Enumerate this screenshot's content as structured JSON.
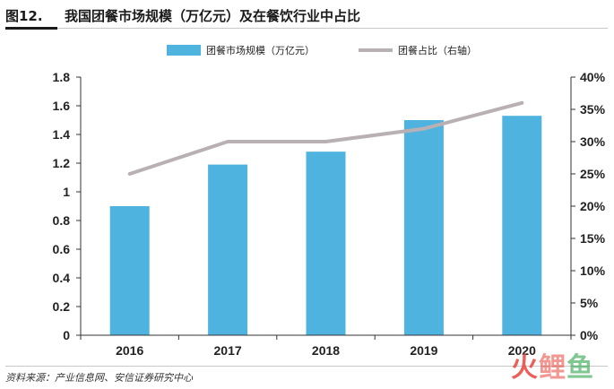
{
  "header": {
    "figure_label": "图12.",
    "title": "我国团餐市场规模（万亿元）及在餐饮行业中占比"
  },
  "chart_data": {
    "type": "bar",
    "categories": [
      "2016",
      "2017",
      "2018",
      "2019",
      "2020"
    ],
    "series": [
      {
        "name": "团餐市场规模（万亿元）",
        "type": "bar",
        "axis": "left",
        "values": [
          0.9,
          1.19,
          1.28,
          1.5,
          1.53
        ],
        "color": "#4fb3e0"
      },
      {
        "name": "团餐占比（右轴）",
        "type": "line",
        "axis": "right",
        "values": [
          25,
          30,
          30,
          32,
          36
        ],
        "color": "#b9b0b3"
      }
    ],
    "left_axis": {
      "min": 0,
      "max": 1.8,
      "ticks": [
        "0",
        "0.2",
        "0.4",
        "0.6",
        "0.8",
        "1",
        "1.2",
        "1.4",
        "1.6",
        "1.8"
      ]
    },
    "right_axis": {
      "min": 0,
      "max": 40,
      "ticks": [
        "0%",
        "5%",
        "10%",
        "15%",
        "20%",
        "25%",
        "30%",
        "35%",
        "40%"
      ]
    },
    "legend_position": "top-center",
    "grid": false
  },
  "footer": {
    "source": "资料来源：产业信息网、安信证券研究中心",
    "watermark": [
      "火",
      "鲤",
      "鱼"
    ]
  }
}
